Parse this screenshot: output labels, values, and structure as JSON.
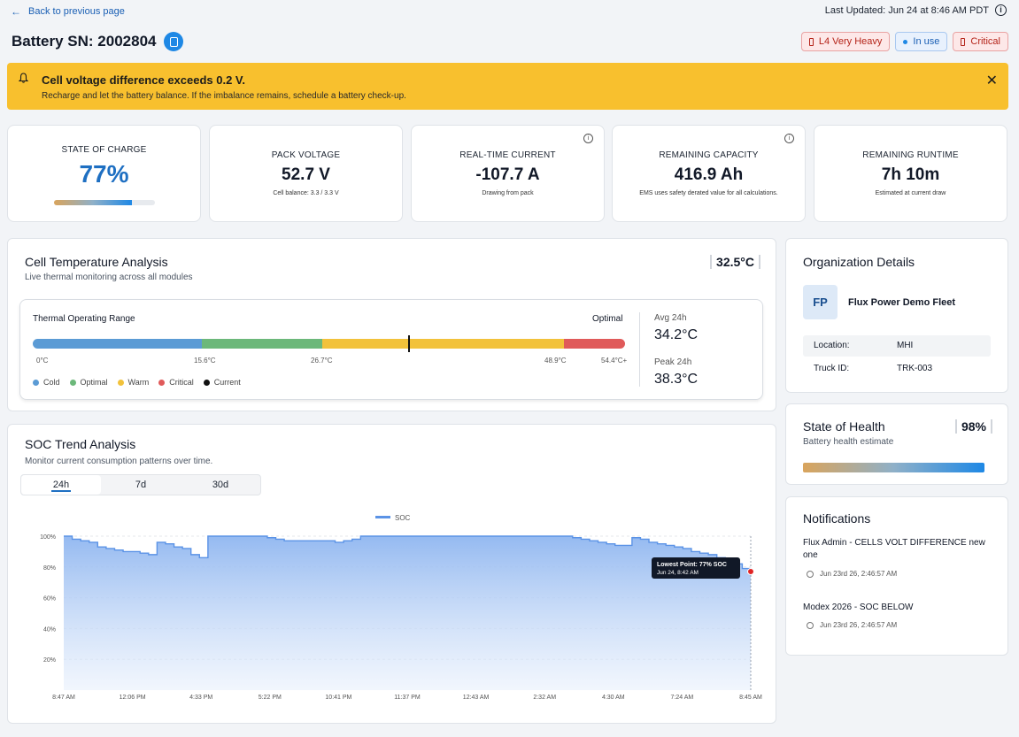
{
  "topbar": {
    "back_label": "Back to previous page",
    "last_updated": "Last Updated: Jun 24 at 8:46 AM PDT"
  },
  "header": {
    "title": "Battery SN: 2002804",
    "badges": [
      {
        "label": "L4 Very Heavy",
        "icon": "battery-icon",
        "color": "#b42318"
      },
      {
        "label": "In use",
        "icon": "dot-icon",
        "color": "#1a5fb4"
      },
      {
        "label": "Critical",
        "icon": "battery-icon",
        "color": "#b42318"
      }
    ]
  },
  "alert": {
    "title": "Cell voltage difference exceeds 0.2 V.",
    "message": "Recharge and let the battery balance. If the imbalance remains, schedule a battery check-up.",
    "color": "#f8c02e"
  },
  "metrics": {
    "soc": {
      "label": "STATE OF CHARGE",
      "value": "77%",
      "fill": 0.77
    },
    "voltage": {
      "label": "PACK VOLTAGE",
      "value": "52.7 V",
      "sub": "Cell balance: 3.3 / 3.3 V"
    },
    "current": {
      "label": "REAL-TIME CURRENT",
      "value": "-107.7 A",
      "sub": "Drawing from pack"
    },
    "capacity": {
      "label": "REMAINING CAPACITY",
      "value": "416.9 Ah",
      "sub": "EMS uses safety derated value for all calculations."
    },
    "runtime": {
      "label": "REMAINING RUNTIME",
      "value": "7h 10m",
      "sub": "Estimated at current draw"
    }
  },
  "temperature": {
    "title": "Cell Temperature Analysis",
    "subtitle": "Live thermal monitoring across all modules",
    "current": "32.5°C",
    "range_title": "Thermal Operating Range",
    "status": "Optimal",
    "ticks": [
      "0°C",
      "15.6°C",
      "26.7°C",
      "48.9°C",
      "54.4°C+"
    ],
    "legend": [
      {
        "label": "Cold",
        "color": "#5b9bd5"
      },
      {
        "label": "Optimal",
        "color": "#6cb87a"
      },
      {
        "label": "Warm",
        "color": "#f2c23b"
      },
      {
        "label": "Critical",
        "color": "#e05a5a"
      },
      {
        "label": "Current",
        "color": "#111111"
      }
    ],
    "current_value": 32.5,
    "avg_label": "Avg 24h",
    "avg_value": "34.2°C",
    "peak_label": "Peak 24h",
    "peak_value": "38.3°C"
  },
  "soc_trend": {
    "title": "SOC Trend Analysis",
    "subtitle": "Monitor current consumption patterns over time.",
    "tabs": [
      "24h",
      "7d",
      "30d"
    ],
    "active_tab": "24h",
    "tooltip_title": "Lowest Point: 77% SOC",
    "tooltip_time": "Jun 24, 8:42 AM"
  },
  "chart_data": {
    "type": "area",
    "series": [
      {
        "name": "SOC",
        "color": "#5b93e6",
        "values": [
          100,
          98,
          97,
          96,
          93,
          92,
          91,
          90,
          90,
          89,
          88,
          96,
          95,
          93,
          92,
          88,
          86,
          100,
          100,
          100,
          100,
          100,
          100,
          100,
          99,
          98,
          97,
          97,
          97,
          97,
          97,
          97,
          96,
          97,
          98,
          100,
          100,
          100,
          100,
          100,
          100,
          100,
          100,
          100,
          100,
          100,
          100,
          100,
          100,
          100,
          100,
          100,
          100,
          100,
          100,
          100,
          100,
          100,
          100,
          100,
          99,
          98,
          97,
          96,
          95,
          94,
          94,
          99,
          98,
          96,
          95,
          94,
          93,
          92,
          90,
          89,
          88,
          86,
          85,
          82,
          79,
          77
        ]
      }
    ],
    "x_tick_labels": [
      "8:47 AM",
      "12:06 PM",
      "4:33 PM",
      "5:22 PM",
      "10:41 PM",
      "11:37 PM",
      "12:43 AM",
      "2:32 AM",
      "4:30 AM",
      "7:24 AM",
      "8:45 AM"
    ],
    "y_tick_labels": [
      "20%",
      "40%",
      "60%",
      "80%",
      "100%"
    ],
    "ylim": [
      0,
      100
    ],
    "grid": true,
    "legend": "top-center",
    "annotation": {
      "text": "Lowest Point: 77% SOC",
      "sub": "Jun 24, 8:42 AM",
      "value": 77
    }
  },
  "organization": {
    "title": "Organization Details",
    "initials": "FP",
    "name": "Flux Power Demo Fleet",
    "location_label": "Location:",
    "location": "MHI",
    "truck_label": "Truck ID:",
    "truck": "TRK-003"
  },
  "health": {
    "title": "State of Health",
    "subtitle": "Battery health estimate",
    "value": "98%",
    "fill": 0.98
  },
  "notifications": {
    "title": "Notifications",
    "items": [
      {
        "text": "Flux Admin - CELLS VOLT DIFFERENCE new one",
        "time": "Jun 23rd 26, 2:46:57 AM"
      },
      {
        "text": "Modex 2026 - SOC BELOW",
        "time": "Jun 23rd 26, 2:46:57 AM"
      }
    ]
  }
}
